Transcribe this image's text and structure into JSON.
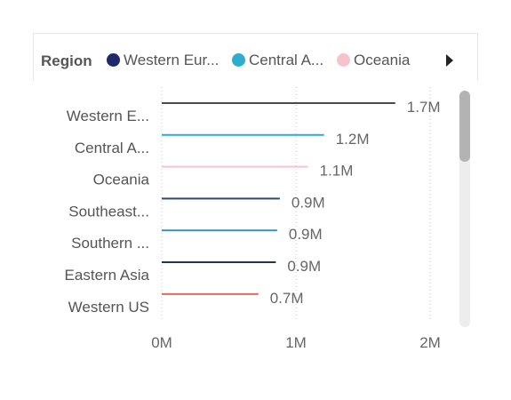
{
  "legend": {
    "title": "Region",
    "items": [
      {
        "label": "Western Eur...",
        "color": "#1f2a6b"
      },
      {
        "label": "Central A...",
        "color": "#2eaecf"
      },
      {
        "label": "Oceania",
        "color": "#f6c3cc"
      }
    ],
    "more_icon": "triangle-right-icon"
  },
  "chart_data": {
    "type": "bar",
    "orientation": "horizontal",
    "categories": [
      "Western E...",
      "Central A...",
      "Oceania",
      "Southeast...",
      "Southern ...",
      "Eastern Asia",
      "Western US"
    ],
    "values": [
      1.74,
      1.21,
      1.09,
      0.88,
      0.86,
      0.85,
      0.72
    ],
    "value_labels": [
      "1.7M",
      "1.2M",
      "1.1M",
      "0.9M",
      "0.9M",
      "0.9M",
      "0.7M"
    ],
    "colors": [
      "#4a4a4a",
      "#2eaecf",
      "#f6c3cc",
      "#2b4b6b",
      "#3d8fb8",
      "#1f3550",
      "#d9695f"
    ],
    "x_ticks": [
      0,
      1,
      2
    ],
    "x_tick_labels": [
      "0M",
      "1M",
      "2M"
    ],
    "xlim": [
      0,
      2.2
    ],
    "grid": true
  }
}
